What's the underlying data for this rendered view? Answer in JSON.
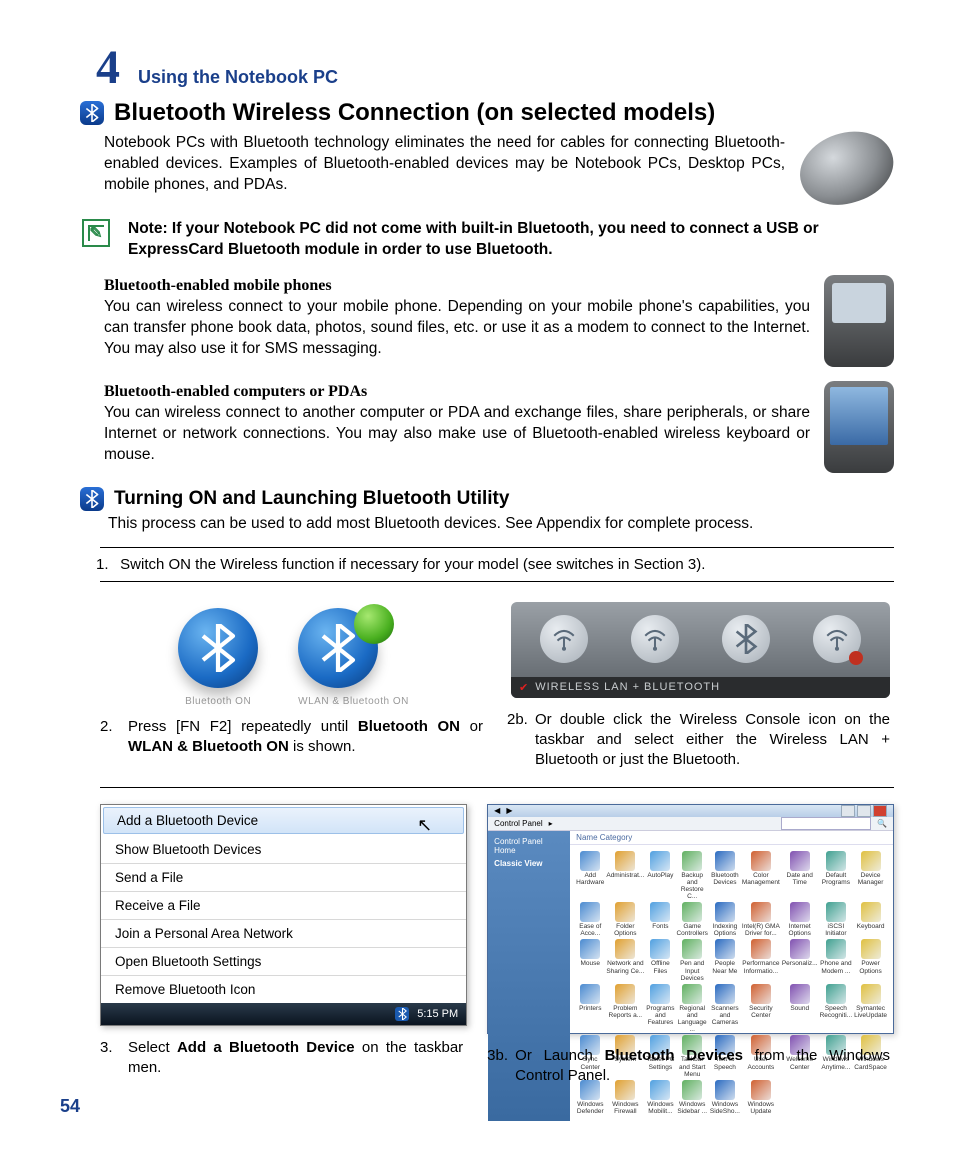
{
  "chapter": {
    "number": "4",
    "title": "Using the Notebook PC"
  },
  "section": {
    "title": "Bluetooth Wireless Connection (on selected models)",
    "intro": "Notebook PCs with Bluetooth technology eliminates the need for cables for connecting Bluetooth-enabled devices. Examples of Bluetooth-enabled devices may be Notebook PCs, Desktop PCs, mobile phones, and PDAs."
  },
  "note": "Note: If your Notebook PC did not come with built-in Bluetooth, you need to connect a USB or ExpressCard Bluetooth module in order to use Bluetooth.",
  "phones": {
    "heading": "Bluetooth-enabled mobile phones",
    "body": "You can wireless connect to your mobile phone. Depending on your mobile phone's capabilities, you can transfer phone book data, photos, sound files, etc. or use it as a modem to connect to the Internet. You may also use it for SMS messaging."
  },
  "pdas": {
    "heading": "Bluetooth-enabled computers or PDAs",
    "body": "You can wireless connect to another computer or PDA and exchange files, share peripherals, or share Internet or network connections. You may also make use of Bluetooth-enabled wireless keyboard or mouse."
  },
  "subsection": {
    "title": "Turning ON and Launching Bluetooth Utility",
    "intro": "This process can be used to add most Bluetooth devices. See Appendix for complete process."
  },
  "steps": {
    "s1": {
      "num": "1.",
      "text": "Switch ON the Wireless function if necessary for your model (see switches in Section 3)."
    },
    "s2": {
      "num": "2.",
      "prefix": "Press [FN F2] repeatedly until ",
      "bold1": "Bluetooth ON",
      "mid": " or ",
      "bold2": "WLAN & Bluetooth ON",
      "suffix": " is shown."
    },
    "s2b": {
      "num": "2b.",
      "text": "Or double click the Wireless Console icon on the taskbar and select either the Wireless LAN + Bluetooth or just the Bluetooth."
    },
    "s3": {
      "num": "3.",
      "prefix": "Select ",
      "bold": "Add a Bluetooth Device",
      "suffix": " on the taskbar men."
    },
    "s3b": {
      "num": "3b.",
      "prefix": "Or Launch ",
      "bold": "Bluetooth Devices",
      "suffix": " from the Windows Control Panel."
    }
  },
  "icon_labels": {
    "bt_on": "Bluetooth ON",
    "wlan_bt_on": "WLAN & Bluetooth ON"
  },
  "wireless_console": {
    "label": "Wireless LAN + Bluetooth"
  },
  "menu": {
    "items": [
      "Add a Bluetooth Device",
      "Show Bluetooth Devices",
      "Send a File",
      "Receive a File",
      "Join a Personal Area Network",
      "Open Bluetooth Settings",
      "Remove Bluetooth Icon"
    ],
    "time": "5:15 PM"
  },
  "control_panel": {
    "addr": "Control Panel",
    "side": {
      "home": "Control Panel Home",
      "classic": "Classic View"
    },
    "view_label": "Name    Category",
    "items": [
      "Add Hardware",
      "Administrat...",
      "AutoPlay",
      "Backup and Restore C...",
      "Bluetooth Devices",
      "Color Management",
      "Date and Time",
      "Default Programs",
      "Device Manager",
      "Ease of Acce...",
      "Folder Options",
      "Fonts",
      "Game Controllers",
      "Indexing Options",
      "Intel(R) GMA Driver for...",
      "Internet Options",
      "iSCSI Initiator",
      "Keyboard",
      "Mouse",
      "Network and Sharing Ce...",
      "Offline Files",
      "Pen and Input Devices",
      "People Near Me",
      "Performance Informatio...",
      "Personaliz...",
      "Phone and Modem ...",
      "Power Options",
      "Printers",
      "Problem Reports a...",
      "Programs and Features",
      "Regional and Language ...",
      "Scanners and Cameras",
      "Security Center",
      "Sound",
      "Speech Recogniti...",
      "Symantec LiveUpdate",
      "Sync Center",
      "System",
      "Tablet PC Settings",
      "Taskbar and Start Menu",
      "Text to Speech",
      "User Accounts",
      "Welcome Center",
      "Windows Anytime...",
      "Windows CardSpace",
      "Windows Defender",
      "Windows Firewall",
      "Windows Mobilit...",
      "Windows Sidebar ...",
      "Windows SideSho...",
      "Windows Update"
    ]
  },
  "page_number": "54",
  "colors": {
    "brand_blue": "#1a3f8a",
    "bt_blue": "#1a6ac4",
    "note_green": "#2a8a4a"
  },
  "cp_icon_colors": [
    "#4a8ad0",
    "#e0a030",
    "#50a0e0",
    "#60b060",
    "#2a6ac0",
    "#d06030",
    "#8050b0",
    "#40a090",
    "#e0c040"
  ]
}
